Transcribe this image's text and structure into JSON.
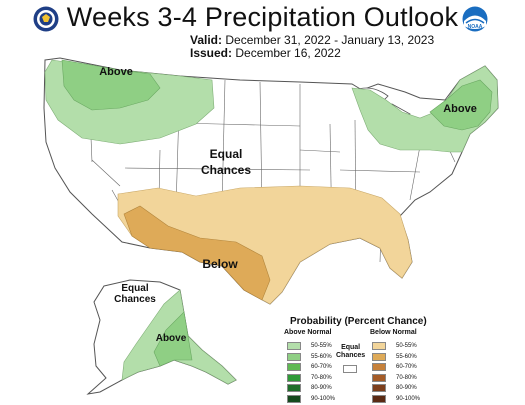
{
  "title": "Weeks 3-4 Precipitation Outlook",
  "valid_label": "Valid:",
  "valid_value": "December 31, 2022 - January 13, 2023",
  "issued_label": "Issued:",
  "issued_value": "December 16, 2022",
  "logos": {
    "left": "doc-seal-icon",
    "right": "noaa-logo-icon",
    "noaa_text": "NOAA"
  },
  "map_labels": {
    "above_nw": "Above",
    "above_ne": "Above",
    "equal_line1": "Equal",
    "equal_line2": "Chances",
    "below": "Below",
    "ak_equal_line1": "Equal",
    "ak_equal_line2": "Chances",
    "ak_above": "Above"
  },
  "legend": {
    "title": "Probability (Percent Chance)",
    "above_header": "Above Normal",
    "below_header": "Below Normal",
    "equal_line1": "Equal",
    "equal_line2": "Chances",
    "above": [
      {
        "label": "50-55%",
        "color": "#b3deaa"
      },
      {
        "label": "55-60%",
        "color": "#8fcf84"
      },
      {
        "label": "60-70%",
        "color": "#5fb953"
      },
      {
        "label": "70-80%",
        "color": "#2e9a37"
      },
      {
        "label": "80-90%",
        "color": "#1f6f2a"
      },
      {
        "label": "90-100%",
        "color": "#154a1d"
      }
    ],
    "below": [
      {
        "label": "50-55%",
        "color": "#f2d59a"
      },
      {
        "label": "55-60%",
        "color": "#deaa58"
      },
      {
        "label": "60-70%",
        "color": "#c6813a"
      },
      {
        "label": "70-80%",
        "color": "#a55c28"
      },
      {
        "label": "80-90%",
        "color": "#7d3f1c"
      },
      {
        "label": "90-100%",
        "color": "#5a2a14"
      }
    ]
  }
}
